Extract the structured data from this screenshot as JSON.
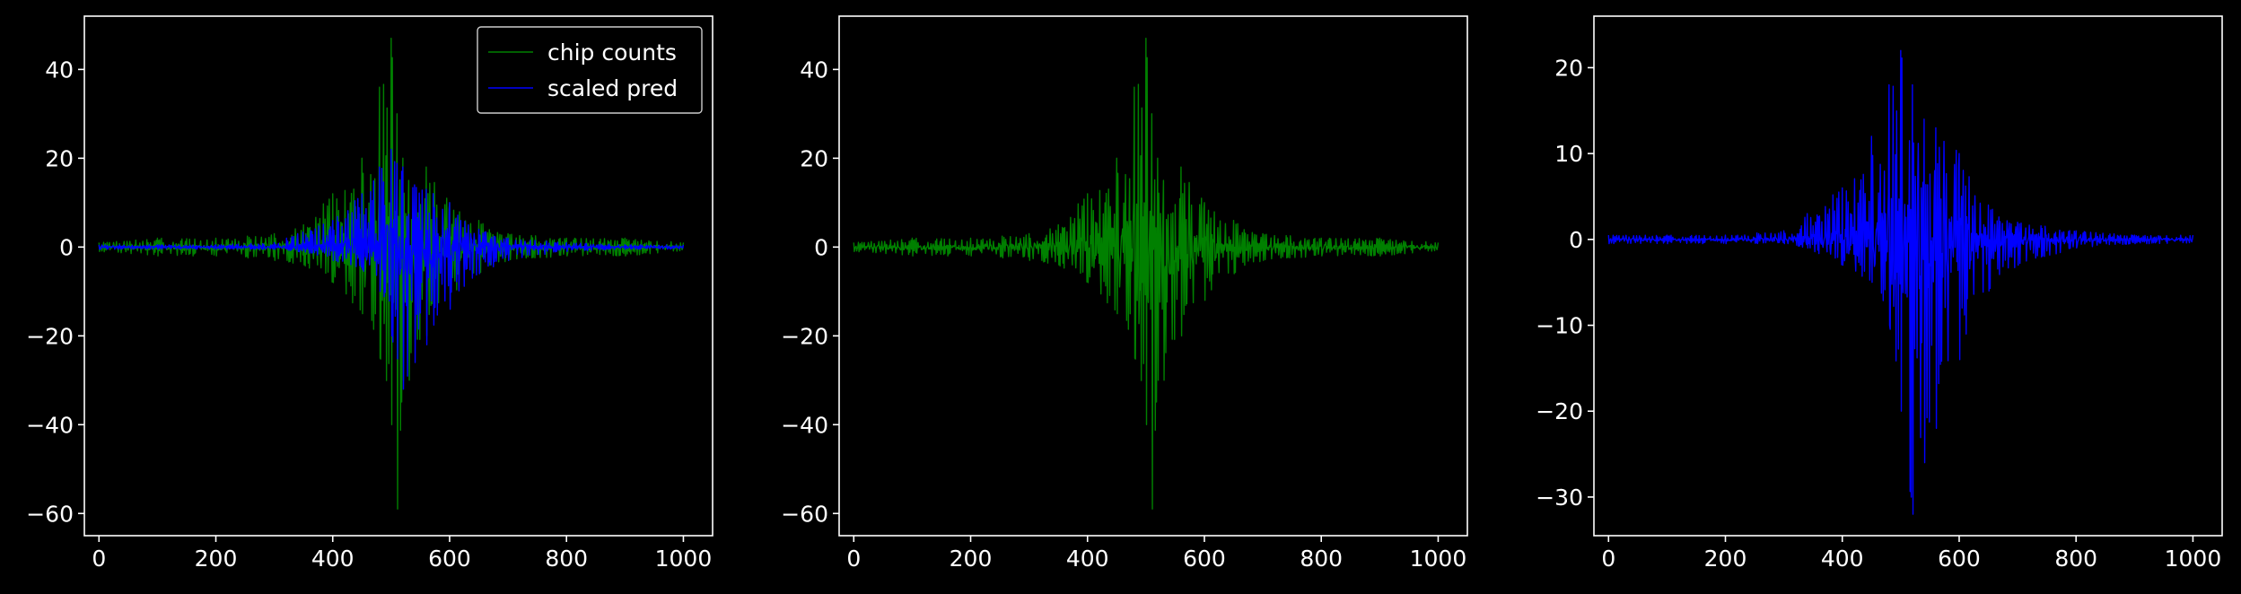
{
  "colors": {
    "background": "#000000",
    "axes": "#ffffff",
    "text": "#ffffff",
    "chip_counts": "#008000",
    "scaled_pred": "#0000ff"
  },
  "chart_data": [
    {
      "type": "line",
      "title": "",
      "xlabel": "",
      "ylabel": "",
      "xlim": [
        -25,
        1050
      ],
      "ylim": [
        -65,
        52
      ],
      "xticks": [
        0,
        200,
        400,
        600,
        800,
        1000
      ],
      "yticks": [
        -60,
        -40,
        -20,
        0,
        20,
        40
      ],
      "grid": false,
      "legend": "top-right",
      "series": [
        {
          "name": "chip counts",
          "color": "#008000",
          "x_range": [
            0,
            1000
          ],
          "envelope_x": [
            0,
            100,
            200,
            300,
            350,
            400,
            450,
            480,
            500,
            510,
            520,
            530,
            560,
            600,
            650,
            700,
            800,
            900,
            1000
          ],
          "envelope_upper": [
            1,
            2,
            2,
            3,
            5,
            12,
            20,
            36,
            47,
            30,
            20,
            15,
            18,
            10,
            6,
            3,
            2,
            2,
            1
          ],
          "envelope_lower": [
            -1,
            -2,
            -2,
            -3,
            -4,
            -8,
            -15,
            -25,
            -40,
            -59,
            -30,
            -30,
            -20,
            -12,
            -6,
            -3,
            -2,
            -2,
            -1
          ]
        },
        {
          "name": "scaled pred",
          "color": "#0000ff",
          "x_range": [
            0,
            1000
          ],
          "envelope_x": [
            0,
            100,
            200,
            300,
            340,
            400,
            450,
            480,
            500,
            520,
            540,
            560,
            600,
            650,
            700,
            800,
            900,
            1000
          ],
          "envelope_upper": [
            0.5,
            0.5,
            0.5,
            1,
            3,
            6,
            12,
            18,
            22,
            18,
            14,
            13,
            10,
            4,
            2,
            1,
            0.5,
            0.5
          ],
          "envelope_lower": [
            -0.5,
            -0.5,
            -0.5,
            -0.5,
            -1,
            -3,
            -5,
            -10,
            -20,
            -32,
            -26,
            -22,
            -14,
            -6,
            -3,
            -1,
            -0.5,
            -0.5
          ]
        }
      ]
    },
    {
      "type": "line",
      "title": "",
      "xlabel": "",
      "ylabel": "",
      "xlim": [
        -25,
        1050
      ],
      "ylim": [
        -65,
        52
      ],
      "xticks": [
        0,
        200,
        400,
        600,
        800,
        1000
      ],
      "yticks": [
        -60,
        -40,
        -20,
        0,
        20,
        40
      ],
      "grid": false,
      "legend": "none",
      "series": [
        {
          "color": "#008000",
          "x_range": [
            0,
            1000
          ],
          "envelope_x": [
            0,
            100,
            200,
            300,
            350,
            400,
            450,
            480,
            500,
            510,
            520,
            530,
            560,
            600,
            650,
            700,
            800,
            900,
            1000
          ],
          "envelope_upper": [
            1,
            2,
            2,
            3,
            5,
            12,
            20,
            36,
            47,
            30,
            20,
            15,
            18,
            10,
            6,
            3,
            2,
            2,
            1
          ],
          "envelope_lower": [
            -1,
            -2,
            -2,
            -3,
            -4,
            -8,
            -15,
            -25,
            -40,
            -59,
            -30,
            -30,
            -20,
            -12,
            -6,
            -3,
            -2,
            -2,
            -1
          ]
        }
      ]
    },
    {
      "type": "line",
      "title": "",
      "xlabel": "",
      "ylabel": "",
      "xlim": [
        -25,
        1050
      ],
      "ylim": [
        -34.5,
        26
      ],
      "xticks": [
        0,
        200,
        400,
        600,
        800,
        1000
      ],
      "yticks": [
        -30,
        -20,
        -10,
        0,
        10,
        20
      ],
      "grid": false,
      "legend": "none",
      "series": [
        {
          "color": "#0000ff",
          "x_range": [
            0,
            1000
          ],
          "envelope_x": [
            0,
            100,
            200,
            300,
            340,
            400,
            450,
            480,
            500,
            520,
            540,
            560,
            600,
            650,
            700,
            800,
            900,
            1000
          ],
          "envelope_upper": [
            0.5,
            0.5,
            0.5,
            1,
            3,
            6,
            12,
            18,
            22,
            18,
            14,
            13,
            10,
            4,
            2,
            1,
            0.5,
            0.5
          ],
          "envelope_lower": [
            -0.5,
            -0.5,
            -0.5,
            -0.5,
            -1,
            -3,
            -5,
            -10,
            -20,
            -32,
            -26,
            -22,
            -14,
            -6,
            -3,
            -1,
            -0.5,
            -0.5
          ]
        }
      ]
    }
  ]
}
